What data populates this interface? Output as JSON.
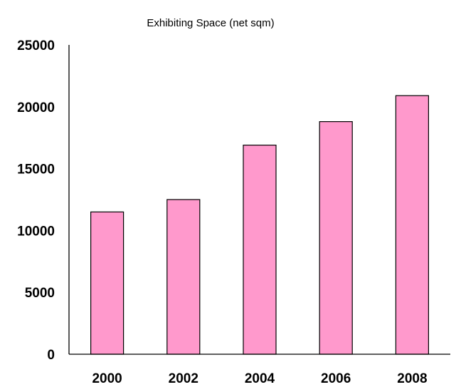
{
  "chart_data": {
    "type": "bar",
    "title": "Exhibiting Space (net sqm)",
    "xlabel": "",
    "ylabel": "",
    "categories": [
      "2000",
      "2002",
      "2004",
      "2006",
      "2008"
    ],
    "values": [
      11500,
      12500,
      16900,
      18800,
      20900
    ],
    "ylim": [
      0,
      25000
    ],
    "yticks": [
      "0",
      "5000",
      "10000",
      "15000",
      "20000",
      "25000"
    ],
    "grid": false,
    "legend": "none",
    "colors": {
      "bar_fill": "#ff99cc",
      "bar_stroke": "#000000",
      "axis": "#000000"
    }
  }
}
